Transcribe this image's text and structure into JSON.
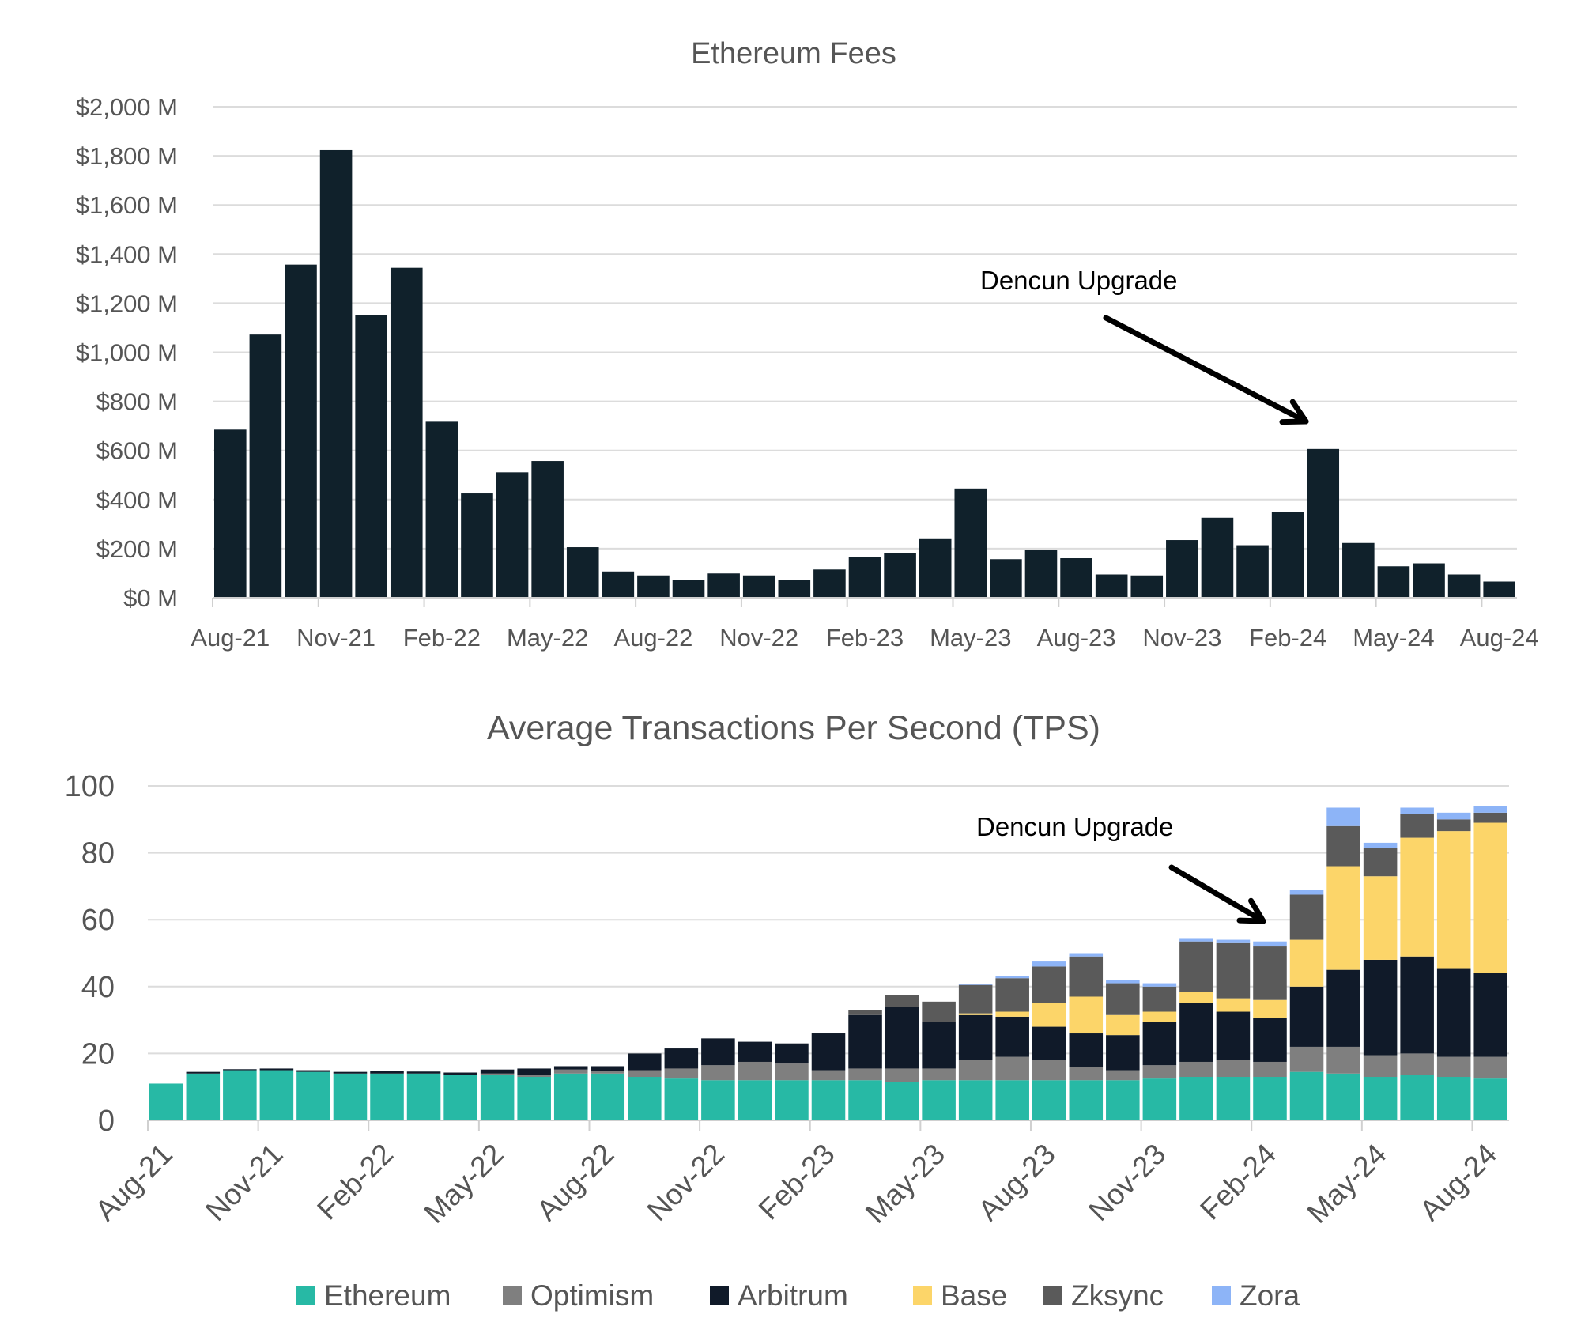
{
  "chart_data": [
    {
      "type": "bar",
      "title": "Ethereum Fees",
      "xlabel": "",
      "ylabel": "",
      "ylim": [
        0,
        2000
      ],
      "yticks": [
        "$0 M",
        "$200 M",
        "$400 M",
        "$600 M",
        "$800 M",
        "$1,000 M",
        "$1,200 M",
        "$1,400 M",
        "$1,600 M",
        "$1,800 M",
        "$2,000 M"
      ],
      "xtick_labels": [
        "Aug-21",
        "Nov-21",
        "Feb-22",
        "May-22",
        "Aug-22",
        "Nov-22",
        "Feb-23",
        "May-23",
        "Aug-23",
        "Nov-23",
        "Feb-24",
        "May-24",
        "Aug-24"
      ],
      "grid": true,
      "bar_color": "#10212b",
      "annotation": {
        "text": "Dencun Upgrade",
        "points_to": "Mar-24"
      },
      "categories": [
        "Aug-21",
        "Sep-21",
        "Oct-21",
        "Nov-21",
        "Dec-21",
        "Jan-22",
        "Feb-22",
        "Mar-22",
        "Apr-22",
        "May-22",
        "Jun-22",
        "Jul-22",
        "Aug-22",
        "Sep-22",
        "Oct-22",
        "Nov-22",
        "Dec-22",
        "Jan-23",
        "Feb-23",
        "Mar-23",
        "Apr-23",
        "May-23",
        "Jun-23",
        "Jul-23",
        "Aug-23",
        "Sep-23",
        "Oct-23",
        "Nov-23",
        "Dec-23",
        "Jan-24",
        "Feb-24",
        "Mar-24",
        "Apr-24",
        "May-24",
        "Jun-24",
        "Jul-24",
        "Aug-24"
      ],
      "values": [
        685,
        1072,
        1357,
        1823,
        1150,
        1344,
        717,
        425,
        511,
        557,
        206,
        107,
        91,
        74,
        99,
        91,
        74,
        115,
        165,
        181,
        239,
        445,
        157,
        194,
        161,
        95,
        91,
        235,
        326,
        214,
        351,
        606,
        223,
        128,
        140,
        95,
        66
      ]
    },
    {
      "type": "bar",
      "stacked": true,
      "title": "Average Transactions Per Second (TPS)",
      "xlabel": "",
      "ylabel": "",
      "ylim": [
        0,
        100
      ],
      "yticks": [
        "0",
        "20",
        "40",
        "60",
        "80",
        "100"
      ],
      "xtick_labels": [
        "Aug-21",
        "Nov-21",
        "Feb-22",
        "May-22",
        "Aug-22",
        "Nov-22",
        "Feb-23",
        "May-23",
        "Aug-23",
        "Nov-23",
        "Feb-24",
        "May-24",
        "Aug-24"
      ],
      "grid": true,
      "legend": "bottom",
      "annotation": {
        "text": "Dencun Upgrade",
        "points_to": "Mar-24"
      },
      "categories": [
        "Aug-21",
        "Sep-21",
        "Oct-21",
        "Nov-21",
        "Dec-21",
        "Jan-22",
        "Feb-22",
        "Mar-22",
        "Apr-22",
        "May-22",
        "Jun-22",
        "Jul-22",
        "Aug-22",
        "Sep-22",
        "Oct-22",
        "Nov-22",
        "Dec-22",
        "Jan-23",
        "Feb-23",
        "Mar-23",
        "Apr-23",
        "May-23",
        "Jun-23",
        "Jul-23",
        "Aug-23",
        "Sep-23",
        "Oct-23",
        "Nov-23",
        "Dec-23",
        "Jan-24",
        "Feb-24",
        "Mar-24",
        "Apr-24",
        "May-24",
        "Jun-24",
        "Jul-24",
        "Aug-24"
      ],
      "series": [
        {
          "name": "Ethereum",
          "color": "#27b9a5",
          "values": [
            11,
            14,
            15,
            15,
            14.5,
            14,
            14,
            14,
            13.5,
            13.5,
            13,
            14,
            14,
            13,
            12.5,
            12,
            12,
            12,
            12,
            12,
            11.5,
            12,
            12,
            12,
            12,
            12,
            12,
            12.5,
            13,
            13,
            13,
            14.5,
            14,
            13,
            13.5,
            13,
            12.5
          ]
        },
        {
          "name": "Optimism",
          "color": "#7f7f7f",
          "values": [
            0,
            0,
            0,
            0,
            0,
            0,
            0,
            0,
            0,
            0.5,
            0.7,
            1.2,
            0.7,
            2,
            3,
            4.5,
            5.5,
            5,
            3,
            3.5,
            4,
            3.5,
            6,
            7,
            6,
            4,
            3,
            4,
            4.5,
            5,
            4.5,
            7.5,
            8,
            6.5,
            6.5,
            6,
            6.5
          ]
        },
        {
          "name": "Arbitrum",
          "color": "#101a29",
          "values": [
            0,
            0.5,
            0.3,
            0.5,
            0.5,
            0.5,
            0.8,
            0.6,
            0.8,
            1.2,
            1.8,
            1,
            1.5,
            5,
            6,
            8,
            6,
            6,
            11,
            16,
            18.5,
            14,
            13.5,
            12,
            10,
            10,
            10.5,
            13,
            17.5,
            14.5,
            13,
            18,
            23,
            28.5,
            29,
            26.5,
            25
          ]
        },
        {
          "name": "Base",
          "color": "#fcd569",
          "values": [
            0,
            0,
            0,
            0,
            0,
            0,
            0,
            0,
            0,
            0,
            0,
            0,
            0,
            0,
            0,
            0,
            0,
            0,
            0,
            0,
            0,
            0,
            0.5,
            1.5,
            7,
            11,
            6,
            3,
            3.5,
            4,
            5.5,
            14,
            31,
            25,
            35.5,
            41,
            45
          ]
        },
        {
          "name": "Zksync",
          "color": "#5a5a5a",
          "values": [
            0,
            0,
            0,
            0,
            0,
            0,
            0,
            0,
            0,
            0,
            0,
            0,
            0,
            0,
            0,
            0,
            0,
            0,
            0,
            1.5,
            3.5,
            6,
            8.5,
            10,
            11,
            12,
            9.5,
            7.5,
            15,
            16.5,
            16,
            13.5,
            12,
            8.5,
            7,
            3.5,
            3
          ]
        },
        {
          "name": "Zora",
          "color": "#8db4f7",
          "values": [
            0,
            0,
            0,
            0,
            0,
            0,
            0,
            0,
            0,
            0,
            0,
            0,
            0,
            0,
            0,
            0,
            0,
            0,
            0,
            0,
            0,
            0,
            0.3,
            0.6,
            1.5,
            1,
            1,
            1,
            1,
            1,
            1.5,
            1.5,
            5.5,
            1.5,
            2,
            2,
            2
          ]
        }
      ]
    }
  ]
}
